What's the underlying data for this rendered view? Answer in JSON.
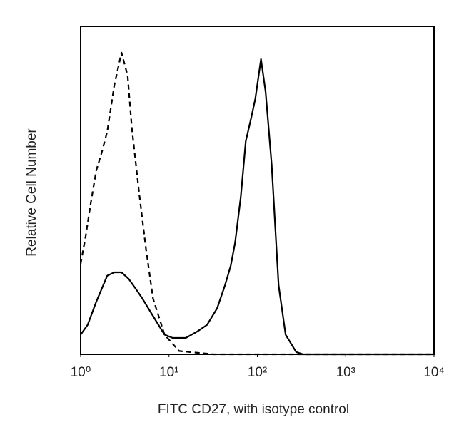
{
  "chart_data": {
    "type": "line",
    "xlabel": "FITC CD27, with isotype control",
    "ylabel": "Relative Cell Number",
    "xscale": "log",
    "xlim": [
      1,
      10000
    ],
    "xticks": [
      {
        "value": 1,
        "label": "10⁰"
      },
      {
        "value": 10,
        "label": "10¹"
      },
      {
        "value": 100,
        "label": "10²"
      },
      {
        "value": 1000,
        "label": "10³"
      },
      {
        "value": 10000,
        "label": "10⁴"
      }
    ],
    "ylim": [
      0,
      100
    ],
    "grid": false,
    "series": [
      {
        "color": "#000000",
        "line_style": "solid",
        "x": [
          1,
          1.2,
          1.5,
          2,
          2.4,
          2.9,
          3.5,
          4.2,
          5,
          6,
          7.2,
          8.9,
          11,
          15.5,
          21,
          27,
          35,
          43,
          50,
          56,
          65,
          74,
          85,
          95,
          110,
          124,
          145,
          174,
          209,
          275,
          331,
          1000,
          10000
        ],
        "values": [
          6,
          9,
          16,
          24,
          25,
          25,
          23,
          20,
          17,
          13.5,
          10,
          6,
          5,
          5,
          7,
          9,
          14,
          21,
          27,
          34,
          48,
          65,
          72,
          78,
          90,
          80,
          58,
          21,
          6,
          0.7,
          0,
          0,
          0
        ]
      },
      {
        "color": "#000000",
        "line_style": "dashed",
        "x": [
          1,
          1.14,
          1.3,
          1.5,
          1.75,
          2,
          2.4,
          2.9,
          3.4,
          3.8,
          4.6,
          5.5,
          6.6,
          8.9,
          13,
          32,
          100,
          10000
        ],
        "values": [
          27.6,
          36,
          46,
          56,
          62,
          68,
          82,
          92,
          85,
          69,
          49,
          32,
          17,
          6,
          1,
          0,
          0,
          0
        ]
      }
    ]
  }
}
